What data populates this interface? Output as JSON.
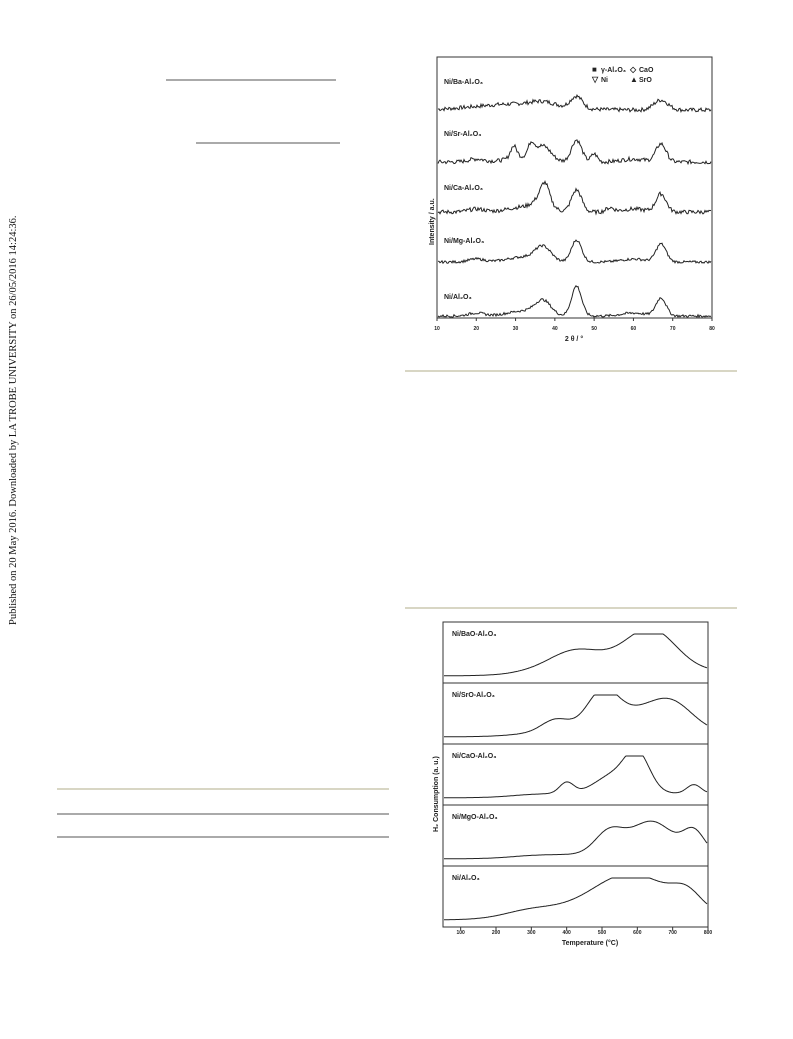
{
  "watermark": "Published on 20 May 2016. Downloaded by LA TROBE UNIVERSITY on 26/05/2016 14:24:36.",
  "figure1": {
    "samples": [
      "Ni/Ba-Al₂O₃",
      "Ni/Sr-Al₂O₃",
      "Ni/Ca-Al₂O₃",
      "Ni/Mg-Al₂O₃",
      "Ni/Al₂O₃"
    ],
    "legend": [
      "γ-Al₂O₃",
      "CaO",
      "Ni",
      "SrO"
    ],
    "y_label": "Intensity / a.u.",
    "x_label": "2 θ / °",
    "x_ticks": [
      "10",
      "20",
      "30",
      "40",
      "50",
      "60",
      "70",
      "80"
    ]
  },
  "figure2": {
    "samples": [
      "Ni/BaO-Al₂O₃",
      "Ni/SrO-Al₂O₃",
      "Ni/CaO-Al₂O₃",
      "Ni/MgO-Al₂O₃",
      "Ni/Al₂O₃"
    ],
    "y_label": "H₂ Consumption (a. u.)",
    "x_label": "Temperature (°C)",
    "x_ticks": [
      "100",
      "200",
      "300",
      "400",
      "500",
      "600",
      "700",
      "800"
    ]
  }
}
